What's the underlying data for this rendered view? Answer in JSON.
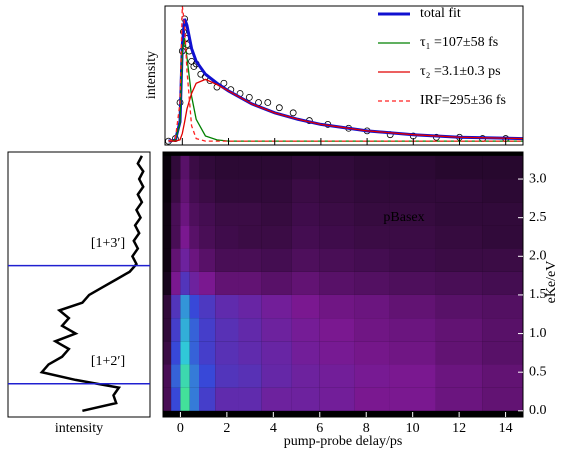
{
  "chart_data": [
    {
      "type": "line",
      "ylabel": "intensity",
      "xlim": [
        -0.75,
        14.75
      ],
      "ylim": [
        -0.03,
        1.05
      ],
      "x": [
        -0.6,
        -0.3,
        -0.1,
        0,
        0.1,
        0.2,
        0.4,
        0.6,
        1,
        1.5,
        2,
        3,
        4,
        5,
        6,
        8,
        10,
        12,
        14.75
      ],
      "series": [
        {
          "name": "total fit",
          "color": "#1010d0",
          "width": 3,
          "dash": false,
          "values": [
            0,
            0.01,
            0.15,
            0.75,
            0.95,
            0.9,
            0.72,
            0.62,
            0.52,
            0.45,
            0.39,
            0.29,
            0.22,
            0.17,
            0.13,
            0.08,
            0.05,
            0.03,
            0.02
          ]
        },
        {
          "name": "τ₁ =107±58 fs",
          "color": "#008000",
          "width": 1.3,
          "dash": false,
          "values": [
            0,
            0.01,
            0.14,
            0.7,
            0.8,
            0.65,
            0.35,
            0.17,
            0.04,
            0.01,
            0,
            0,
            0,
            0,
            0,
            0,
            0,
            0,
            0
          ]
        },
        {
          "name": "τ₂ =3.1±0.3 ps",
          "color": "#e00000",
          "width": 1.3,
          "dash": false,
          "values": [
            0,
            0,
            0.01,
            0.06,
            0.15,
            0.25,
            0.37,
            0.45,
            0.48,
            0.44,
            0.39,
            0.29,
            0.22,
            0.17,
            0.13,
            0.08,
            0.05,
            0.03,
            0.02
          ]
        },
        {
          "name": "IRF=295±36 fs",
          "color": "#ff2020",
          "width": 1.3,
          "dash": true,
          "values": [
            0,
            0.02,
            0.3,
            1.05,
            0.9,
            0.55,
            0.12,
            0.02,
            0,
            0,
            0,
            0,
            0,
            0,
            0,
            0,
            0,
            0,
            0
          ]
        }
      ],
      "points": {
        "x": [
          -0.6,
          -0.3,
          -0.1,
          0,
          0.05,
          0.1,
          0.15,
          0.2,
          0.3,
          0.4,
          0.5,
          0.6,
          0.8,
          1,
          1.2,
          1.5,
          1.8,
          2.1,
          2.5,
          2.9,
          3.3,
          3.7,
          4.2,
          4.8,
          5.5,
          6.3,
          7.2,
          8,
          9,
          10,
          11,
          12,
          13,
          14
        ],
        "y": [
          0,
          0.02,
          0.3,
          0.7,
          0.85,
          0.95,
          0.8,
          0.75,
          0.7,
          0.62,
          0.58,
          0.6,
          0.52,
          0.5,
          0.47,
          0.42,
          0.45,
          0.4,
          0.37,
          0.34,
          0.3,
          0.3,
          0.26,
          0.22,
          0.16,
          0.13,
          0.1,
          0.08,
          0.05,
          0.04,
          0.03,
          0.03,
          0.02,
          0.02
        ]
      }
    },
    {
      "type": "line",
      "xlabel": "intensity",
      "xlim": [
        0,
        1.05
      ],
      "ylim": [
        -0.08,
        3.35
      ],
      "color": "#000000",
      "y": [
        0,
        0.1,
        0.2,
        0.3,
        0.4,
        0.5,
        0.6,
        0.7,
        0.8,
        0.9,
        1.0,
        1.1,
        1.2,
        1.3,
        1.4,
        1.5,
        1.6,
        1.7,
        1.8,
        1.9,
        2.0,
        2.1,
        2.2,
        2.3,
        2.4,
        2.5,
        2.6,
        2.7,
        2.8,
        2.9,
        3.0,
        3.1,
        3.2,
        3.3
      ],
      "values": [
        0.55,
        0.8,
        0.78,
        0.82,
        0.5,
        0.25,
        0.3,
        0.4,
        0.45,
        0.35,
        0.5,
        0.4,
        0.45,
        0.38,
        0.55,
        0.6,
        0.7,
        0.8,
        0.9,
        0.95,
        0.92,
        0.96,
        0.93,
        0.97,
        0.94,
        0.98,
        0.95,
        0.99,
        0.96,
        1.0,
        0.97,
        1.0,
        0.96,
        0.99
      ],
      "annotations": [
        {
          "label": "[1+3′]",
          "value": 1.88,
          "color": "#2020d0"
        },
        {
          "label": "[1+2′]",
          "value": 0.35,
          "color": "#2020d0"
        }
      ]
    },
    {
      "type": "heatmap",
      "xlabel": "pump-probe delay/ps",
      "ylabel": "eKe/eV",
      "annotation": "pBasex",
      "xlim": [
        -0.75,
        14.75
      ],
      "ylim": [
        -0.08,
        3.35
      ],
      "zlim": [
        0,
        1
      ],
      "xticks": [
        0,
        2,
        4,
        6,
        8,
        10,
        12,
        14
      ],
      "yticks": [
        {
          "value": 0,
          "label": "0.0"
        },
        0.5,
        {
          "value": 1,
          "label": "1.0"
        },
        1.5,
        {
          "value": 2,
          "label": "2.0"
        },
        2.5,
        {
          "value": 3,
          "label": "3.0"
        }
      ],
      "colormap": [
        "#000000",
        "#7a1890",
        "#3848d8",
        "#30c8d8",
        "#50f070"
      ],
      "xbins": [
        -0.75,
        -0.4,
        0,
        0.4,
        0.8,
        1.5,
        2.5,
        3.5,
        4.8,
        6,
        7.5,
        9,
        11,
        13,
        14.75
      ],
      "ybins": [
        0,
        0.3,
        0.6,
        0.9,
        1.2,
        1.5,
        1.8,
        2.1,
        2.4,
        2.7,
        3.0,
        3.3
      ],
      "z": [
        [
          0.15,
          0.5,
          0.9,
          0.6,
          0.45,
          0.35,
          0.35,
          0.3,
          0.3,
          0.28,
          0.25,
          0.25,
          0.22,
          0.2
        ],
        [
          0.15,
          0.55,
          0.85,
          0.6,
          0.5,
          0.4,
          0.38,
          0.33,
          0.3,
          0.28,
          0.26,
          0.25,
          0.22,
          0.2
        ],
        [
          0.12,
          0.5,
          0.75,
          0.55,
          0.45,
          0.38,
          0.35,
          0.32,
          0.28,
          0.26,
          0.24,
          0.23,
          0.2,
          0.18
        ],
        [
          0.1,
          0.45,
          0.7,
          0.55,
          0.45,
          0.38,
          0.34,
          0.3,
          0.27,
          0.25,
          0.23,
          0.22,
          0.2,
          0.18
        ],
        [
          0.1,
          0.4,
          0.65,
          0.5,
          0.42,
          0.35,
          0.32,
          0.28,
          0.25,
          0.23,
          0.22,
          0.2,
          0.18,
          0.17
        ],
        [
          0.05,
          0.25,
          0.4,
          0.3,
          0.25,
          0.2,
          0.2,
          0.18,
          0.2,
          0.18,
          0.17,
          0.16,
          0.15,
          0.14
        ],
        [
          0.03,
          0.2,
          0.3,
          0.22,
          0.18,
          0.15,
          0.15,
          0.14,
          0.16,
          0.15,
          0.14,
          0.13,
          0.12,
          0.12
        ],
        [
          0.03,
          0.15,
          0.25,
          0.18,
          0.15,
          0.13,
          0.12,
          0.12,
          0.14,
          0.13,
          0.12,
          0.12,
          0.11,
          0.1
        ],
        [
          0.03,
          0.15,
          0.22,
          0.16,
          0.14,
          0.12,
          0.12,
          0.11,
          0.13,
          0.12,
          0.11,
          0.11,
          0.1,
          0.1
        ],
        [
          0.02,
          0.12,
          0.2,
          0.14,
          0.12,
          0.1,
          0.1,
          0.1,
          0.12,
          0.11,
          0.1,
          0.1,
          0.1,
          0.09
        ],
        [
          0.02,
          0.1,
          0.18,
          0.12,
          0.1,
          0.09,
          0.09,
          0.09,
          0.1,
          0.1,
          0.09,
          0.09,
          0.08,
          0.08
        ]
      ]
    }
  ]
}
